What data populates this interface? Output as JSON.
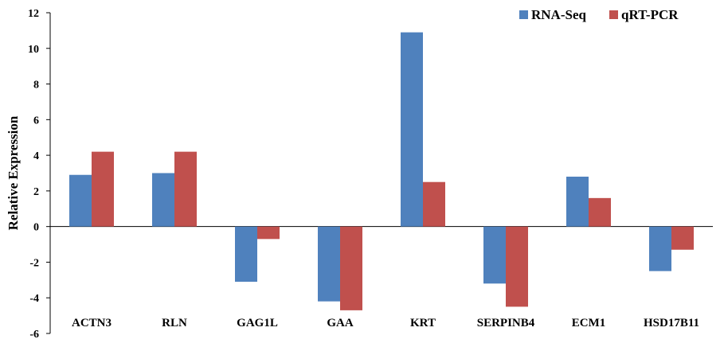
{
  "chart_data": {
    "type": "bar",
    "title": "",
    "xlabel": "",
    "ylabel": "Relative Expression",
    "ylim": [
      -6,
      12
    ],
    "yticks": [
      -6,
      -4,
      -2,
      0,
      2,
      4,
      6,
      8,
      10,
      12
    ],
    "grid": false,
    "legend_position": "top-right",
    "categories": [
      "ACTN3",
      "RLN",
      "GAG1L",
      "GAA",
      "KRT",
      "SERPINB4",
      "ECM1",
      "HSD17B11"
    ],
    "series": [
      {
        "name": "RNA-Seq",
        "color": "#4f81bd",
        "values": [
          2.9,
          3.0,
          -3.1,
          -4.2,
          10.9,
          -3.2,
          2.8,
          -2.5
        ]
      },
      {
        "name": "qRT-PCR",
        "color": "#c0504d",
        "values": [
          4.2,
          4.2,
          -0.7,
          -4.7,
          2.5,
          -4.5,
          1.6,
          -1.3
        ]
      }
    ]
  }
}
